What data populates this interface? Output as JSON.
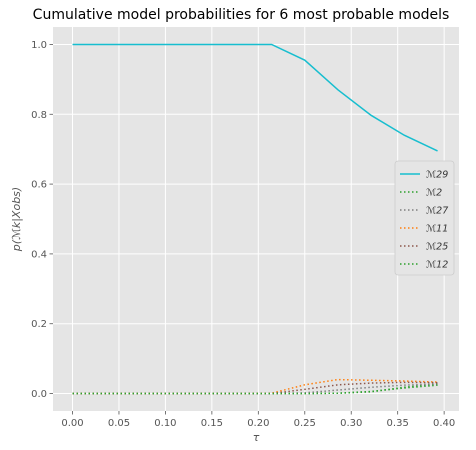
{
  "chart_data": {
    "type": "line",
    "title": "Cumulative model probabilities for 6 most probable models",
    "xlabel": "τ",
    "ylabel": "p(ℳk|Xobs)",
    "xlim": [
      -0.021,
      0.416
    ],
    "ylim": [
      -0.05,
      1.05
    ],
    "xticks": [
      "0.00",
      "0.05",
      "0.10",
      "0.15",
      "0.20",
      "0.25",
      "0.30",
      "0.35",
      "0.40"
    ],
    "yticks": [
      "0.0",
      "0.2",
      "0.4",
      "0.6",
      "0.8",
      "1.0"
    ],
    "grid": true,
    "legend_position": "center-right",
    "x": [
      0.0,
      0.0357,
      0.0714,
      0.1071,
      0.1429,
      0.1786,
      0.2143,
      0.25,
      0.2857,
      0.3214,
      0.3571,
      0.3929
    ],
    "series": [
      {
        "name": "ℳ29",
        "color": "#17becf",
        "style": "solid",
        "values": [
          1.0,
          1.0,
          1.0,
          1.0,
          1.0,
          1.0,
          1.0,
          0.955,
          0.87,
          0.797,
          0.74,
          0.695
        ]
      },
      {
        "name": "ℳ2",
        "color": "#2ca02c",
        "style": "dotted",
        "values": [
          0.0,
          0.0,
          0.0,
          0.0,
          0.0,
          0.0,
          0.0,
          0.0,
          0.001,
          0.005,
          0.018,
          0.028
        ]
      },
      {
        "name": "ℳ27",
        "color": "#7f7f7f",
        "style": "dotted",
        "values": [
          0.0,
          0.0,
          0.0,
          0.0,
          0.0,
          0.0,
          0.0,
          0.002,
          0.01,
          0.018,
          0.024,
          0.027
        ]
      },
      {
        "name": "ℳ11",
        "color": "#ff7f0e",
        "style": "dotted",
        "values": [
          0.0,
          0.0,
          0.0,
          0.0,
          0.0,
          0.0,
          0.001,
          0.025,
          0.04,
          0.038,
          0.036,
          0.033
        ]
      },
      {
        "name": "ℳ25",
        "color": "#8c564b",
        "style": "dotted",
        "values": [
          0.0,
          0.0,
          0.0,
          0.0,
          0.0,
          0.0,
          0.0,
          0.012,
          0.025,
          0.03,
          0.032,
          0.031
        ]
      },
      {
        "name": "ℳ12",
        "color": "#2ca02c",
        "style": "dotted",
        "values": [
          0.0,
          0.0,
          0.0,
          0.0,
          0.0,
          0.0,
          0.0,
          0.0,
          0.001,
          0.006,
          0.016,
          0.024
        ]
      }
    ]
  }
}
